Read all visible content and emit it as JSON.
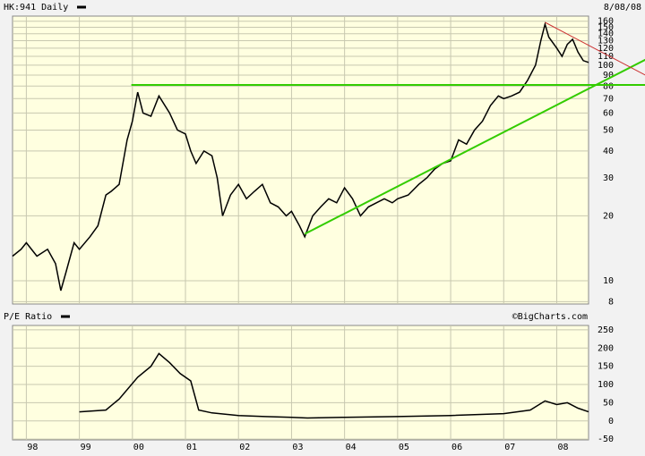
{
  "chart_data": [
    {
      "type": "line",
      "date_label": "8/08/08",
      "log_scale": true,
      "grid": true,
      "background": "#ffffe0",
      "xlim": [
        1997.74,
        2008.6
      ],
      "ylim": [
        7.8,
        169
      ],
      "yticks": [
        8,
        10,
        20,
        30,
        40,
        50,
        60,
        70,
        80,
        90,
        100,
        110,
        120,
        130,
        140,
        150,
        160
      ],
      "x": [
        1997.74,
        1997.9,
        1998.0,
        1998.2,
        1998.4,
        1998.55,
        1998.65,
        1998.75,
        1998.9,
        1999.0,
        1999.2,
        1999.35,
        1999.5,
        1999.6,
        1999.75,
        1999.9,
        2000.0,
        2000.1,
        2000.2,
        2000.35,
        2000.5,
        2000.7,
        2000.85,
        2001.0,
        2001.1,
        2001.2,
        2001.35,
        2001.5,
        2001.6,
        2001.7,
        2001.85,
        2002.0,
        2002.15,
        2002.3,
        2002.45,
        2002.6,
        2002.75,
        2002.9,
        2003.0,
        2003.15,
        2003.25,
        2003.4,
        2003.55,
        2003.7,
        2003.85,
        2004.0,
        2004.15,
        2004.3,
        2004.45,
        2004.6,
        2004.75,
        2004.9,
        2005.0,
        2005.2,
        2005.4,
        2005.55,
        2005.7,
        2005.85,
        2006.0,
        2006.15,
        2006.3,
        2006.45,
        2006.6,
        2006.75,
        2006.9,
        2007.0,
        2007.15,
        2007.3,
        2007.45,
        2007.6,
        2007.7,
        2007.78,
        2007.85,
        2008.0,
        2008.1,
        2008.2,
        2008.3,
        2008.4,
        2008.5,
        2008.6
      ],
      "series": [
        {
          "name": "HK:941 Daily",
          "color": "#000000",
          "values": [
            13,
            14,
            15,
            13,
            14,
            12,
            9,
            11,
            15,
            14,
            16,
            18,
            25,
            26,
            28,
            45,
            55,
            75,
            60,
            58,
            72,
            60,
            50,
            48,
            40,
            35,
            40,
            38,
            30,
            20,
            25,
            28,
            24,
            26,
            28,
            23,
            22,
            20,
            21,
            18,
            16,
            20,
            22,
            24,
            23,
            27,
            24,
            20,
            22,
            23,
            24,
            23,
            24,
            25,
            28,
            30,
            33,
            35,
            36,
            45,
            43,
            50,
            55,
            65,
            72,
            70,
            72,
            75,
            85,
            100,
            130,
            155,
            135,
            120,
            110,
            125,
            132,
            115,
            105,
            103
          ]
        }
      ],
      "trendlines": [
        {
          "color": "#33cc00",
          "x": [
            1999.98,
            2009.67
          ],
          "y": [
            81,
            81
          ]
        },
        {
          "color": "#33cc00",
          "x": [
            2003.25,
            2009.67
          ],
          "y": [
            16.5,
            106
          ]
        },
        {
          "color": "#cc3333",
          "x": [
            2007.78,
            2009.67
          ],
          "y": [
            158,
            90
          ]
        }
      ]
    },
    {
      "type": "line",
      "source": "©BigCharts.com",
      "grid": true,
      "background": "#ffffe0",
      "xlim": [
        1997.74,
        2008.6
      ],
      "ylim": [
        -52,
        262
      ],
      "yticks": [
        -50,
        0,
        50,
        100,
        150,
        200,
        250
      ],
      "xticks": [
        {
          "value": 1998,
          "label": "98"
        },
        {
          "value": 1999,
          "label": "99"
        },
        {
          "value": 2000,
          "label": "00"
        },
        {
          "value": 2001,
          "label": "01"
        },
        {
          "value": 2002,
          "label": "02"
        },
        {
          "value": 2003,
          "label": "03"
        },
        {
          "value": 2004,
          "label": "04"
        },
        {
          "value": 2005,
          "label": "05"
        },
        {
          "value": 2006,
          "label": "06"
        },
        {
          "value": 2007,
          "label": "07"
        },
        {
          "value": 2008,
          "label": "08"
        }
      ],
      "x": [
        1999.0,
        1999.5,
        1999.75,
        2000.1,
        2000.35,
        2000.5,
        2000.7,
        2000.9,
        2001.1,
        2001.25,
        2001.5,
        2002.0,
        2002.5,
        2003.0,
        2003.3,
        2004.0,
        2005.0,
        2006.0,
        2007.0,
        2007.5,
        2007.78,
        2008.0,
        2008.2,
        2008.4,
        2008.6
      ],
      "series": [
        {
          "name": "P/E Ratio",
          "color": "#000000",
          "values": [
            25,
            30,
            60,
            120,
            150,
            185,
            160,
            130,
            110,
            30,
            22,
            15,
            12,
            10,
            8,
            10,
            12,
            15,
            20,
            30,
            55,
            45,
            50,
            35,
            25
          ]
        }
      ]
    }
  ]
}
